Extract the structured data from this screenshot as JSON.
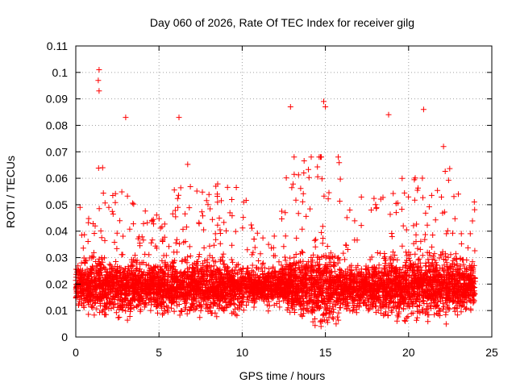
{
  "chart_data": {
    "type": "scatter",
    "title": "Day 060 of 2026, Rate Of TEC Index for receiver gilg",
    "xlabel": "GPS time / hours",
    "ylabel": "ROTI / TECUs",
    "xlim": [
      0,
      25
    ],
    "ylim": [
      0,
      0.11
    ],
    "x_ticks": [
      0,
      5,
      10,
      15,
      20,
      25
    ],
    "x_tick_labels": [
      "0",
      "5",
      "10",
      "15",
      "20",
      "25"
    ],
    "y_ticks": [
      0,
      0.01,
      0.02,
      0.03,
      0.04,
      0.05,
      0.06,
      0.07,
      0.08,
      0.09,
      0.1,
      0.11
    ],
    "y_tick_labels": [
      "0",
      "0.01",
      "0.02",
      "0.03",
      "0.04",
      "0.05",
      "0.06",
      "0.07",
      "0.08",
      "0.09",
      "0.1",
      "0.11"
    ],
    "grid": true,
    "legend": "none",
    "marker": "plus",
    "series_color": "#ff0000",
    "data_range_x": [
      0,
      24
    ],
    "notable_points": [
      {
        "x": 1.4,
        "y": 0.101
      },
      {
        "x": 1.35,
        "y": 0.097
      },
      {
        "x": 1.4,
        "y": 0.093
      },
      {
        "x": 3.0,
        "y": 0.083
      },
      {
        "x": 6.2,
        "y": 0.083
      },
      {
        "x": 12.9,
        "y": 0.087
      },
      {
        "x": 14.9,
        "y": 0.089
      },
      {
        "x": 15.0,
        "y": 0.087
      },
      {
        "x": 18.8,
        "y": 0.084
      },
      {
        "x": 20.9,
        "y": 0.086
      },
      {
        "x": 22.1,
        "y": 0.072
      }
    ]
  }
}
